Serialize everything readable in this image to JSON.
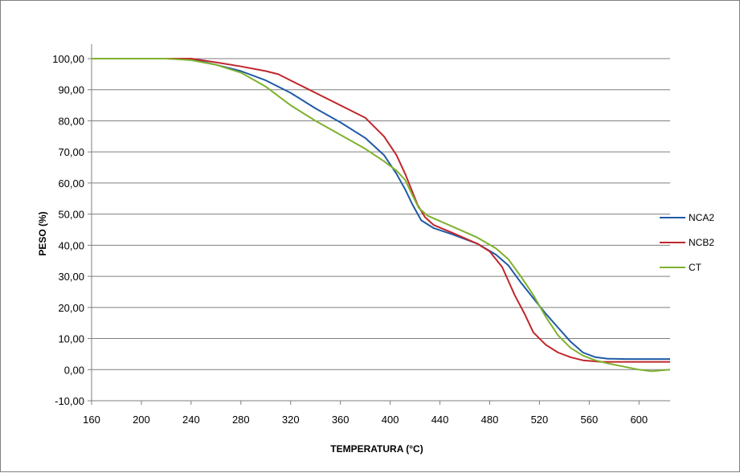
{
  "chart_data": {
    "type": "line",
    "title": "",
    "xlabel": "TEMPERATURA (°C)",
    "ylabel": "PESO (%)",
    "xlim": [
      160,
      625
    ],
    "ylim": [
      -10,
      100
    ],
    "xticks": [
      160,
      200,
      240,
      280,
      320,
      360,
      400,
      440,
      480,
      520,
      560,
      600
    ],
    "yticks": [
      -10,
      0,
      10,
      20,
      30,
      40,
      50,
      60,
      70,
      80,
      90,
      100
    ],
    "ytick_labels": [
      "-10,00",
      "0,00",
      "10,00",
      "20,00",
      "30,00",
      "40,00",
      "50,00",
      "60,00",
      "70,00",
      "80,00",
      "90,00",
      "100,00"
    ],
    "grid": "horizontal",
    "legend": "right",
    "series": [
      {
        "name": "NCA2",
        "color": "#1f5aa6",
        "x": [
          160,
          220,
          240,
          260,
          280,
          300,
          320,
          340,
          360,
          380,
          395,
          405,
          412,
          418,
          425,
          435,
          450,
          470,
          485,
          495,
          505,
          515,
          525,
          535,
          545,
          555,
          565,
          575,
          590,
          610,
          625
        ],
        "y": [
          100,
          100,
          99.8,
          98,
          96,
          93,
          89,
          84,
          79.5,
          74.5,
          69,
          63,
          58,
          53,
          48,
          45.5,
          43.5,
          40.5,
          37,
          33.5,
          28,
          23,
          18,
          13.5,
          9,
          5.5,
          4,
          3.5,
          3.4,
          3.4,
          3.4
        ]
      },
      {
        "name": "NCB2",
        "color": "#c0262c",
        "x": [
          160,
          220,
          240,
          260,
          280,
          300,
          310,
          320,
          340,
          360,
          380,
          395,
          405,
          412,
          418,
          422,
          428,
          435,
          450,
          470,
          480,
          490,
          500,
          508,
          515,
          525,
          535,
          545,
          555,
          570,
          590,
          625
        ],
        "y": [
          100,
          100,
          100,
          98.8,
          97.5,
          96,
          95,
          93,
          89,
          85,
          81,
          75,
          69,
          63,
          57,
          53,
          49,
          46.5,
          44,
          40.5,
          38,
          33,
          24,
          18,
          12,
          8,
          5.5,
          4,
          3,
          2.5,
          2.5,
          2.5
        ]
      },
      {
        "name": "CT",
        "color": "#7fb12d",
        "x": [
          160,
          220,
          240,
          260,
          280,
          300,
          320,
          340,
          360,
          380,
          395,
          405,
          412,
          418,
          423,
          430,
          450,
          470,
          485,
          495,
          505,
          515,
          525,
          535,
          545,
          555,
          565,
          575,
          590,
          600,
          610,
          625
        ],
        "y": [
          100,
          100,
          99.5,
          98,
          95.5,
          91,
          85,
          80,
          75.5,
          71,
          67,
          64,
          61,
          56,
          52,
          49.5,
          46,
          42.5,
          39,
          35.5,
          30,
          24,
          17,
          11,
          7,
          4.5,
          3,
          2,
          0.8,
          0,
          -0.5,
          0
        ]
      }
    ]
  }
}
